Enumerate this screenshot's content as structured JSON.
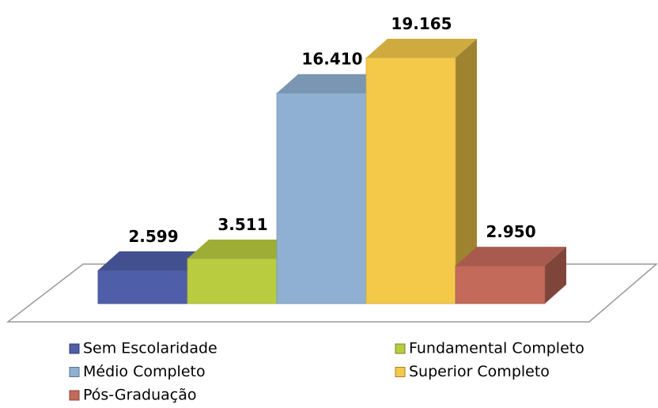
{
  "chart_data": {
    "type": "bar3d",
    "categories": [
      "Sem Escolaridade",
      "Fundamental Completo",
      "Médio Completo",
      "Superior Completo",
      "Pós-Graduação"
    ],
    "values": [
      2599,
      3511,
      16410,
      19165,
      2950
    ],
    "value_labels": [
      "2.599",
      "3.511",
      "16.410",
      "19.165",
      "2.950"
    ],
    "colors": [
      "#4f5ea8",
      "#b9cc40",
      "#8fb0d2",
      "#f4c94a",
      "#c46a5a"
    ]
  }
}
